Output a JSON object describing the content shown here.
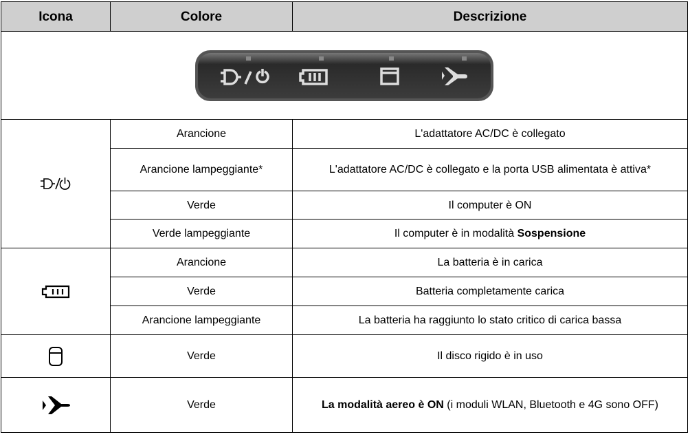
{
  "table": {
    "header": [
      "Icona",
      "Colore",
      "Descrizione"
    ],
    "groups": [
      {
        "rows": [
          {
            "color": "Arancione",
            "description": [
              {
                "text": "L'adattatore AC/DC è collegato",
                "bold": false
              }
            ]
          },
          {
            "color": "Arancione lampeggiante*",
            "description": [
              {
                "text": "L'adattatore AC/DC è collegato e la porta USB alimentata è attiva*",
                "bold": false
              }
            ]
          },
          {
            "color": "Verde",
            "description": [
              {
                "text": "Il computer è ON",
                "bold": false
              }
            ]
          },
          {
            "color": "Verde lampeggiante",
            "description": [
              {
                "text": "Il computer è in modalità ",
                "bold": false
              },
              {
                "text": "Sospensione",
                "bold": true
              }
            ]
          }
        ]
      },
      {
        "rows": [
          {
            "color": "Arancione",
            "description": [
              {
                "text": "La batteria è in carica",
                "bold": false
              }
            ]
          },
          {
            "color": "Verde",
            "description": [
              {
                "text": "Batteria completamente carica",
                "bold": false
              }
            ]
          },
          {
            "color": "Arancione lampeggiante",
            "description": [
              {
                "text": "La batteria ha raggiunto lo stato critico di carica bassa",
                "bold": false
              }
            ]
          }
        ]
      },
      {
        "rows": [
          {
            "color": "Verde",
            "description": [
              {
                "text": "Il disco rigido è in uso",
                "bold": false
              }
            ]
          }
        ]
      },
      {
        "rows": [
          {
            "color": "Verde",
            "description": [
              {
                "text": "La modalità aereo è ON",
                "bold": true
              },
              {
                "text": " (i moduli WLAN, Bluetooth e 4G sono OFF)",
                "bold": false
              }
            ]
          }
        ]
      }
    ]
  }
}
